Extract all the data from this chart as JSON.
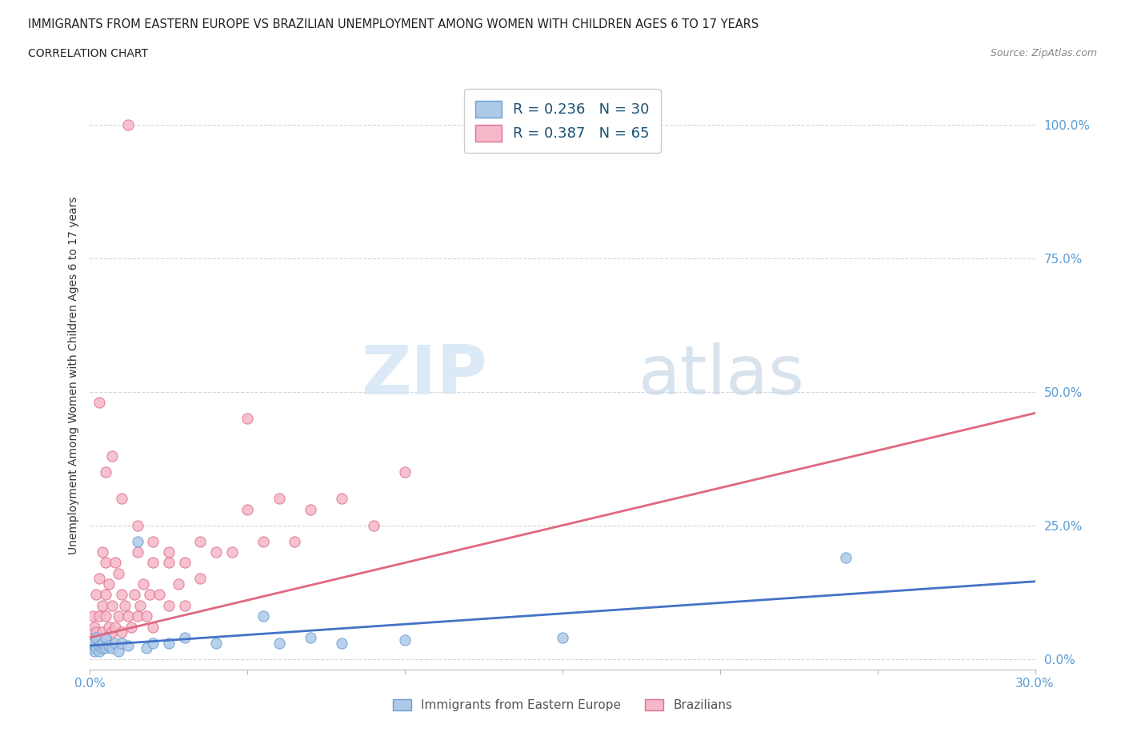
{
  "title": "IMMIGRANTS FROM EASTERN EUROPE VS BRAZILIAN UNEMPLOYMENT AMONG WOMEN WITH CHILDREN AGES 6 TO 17 YEARS",
  "subtitle": "CORRELATION CHART",
  "source": "Source: ZipAtlas.com",
  "ylabel": "Unemployment Among Women with Children Ages 6 to 17 years",
  "xlim": [
    0.0,
    0.3
  ],
  "ylim": [
    -0.02,
    1.08
  ],
  "yticks": [
    0.0,
    0.25,
    0.5,
    0.75,
    1.0
  ],
  "ytick_labels": [
    "0.0%",
    "25.0%",
    "50.0%",
    "75.0%",
    "100.0%"
  ],
  "xticks": [
    0.0,
    0.05,
    0.1,
    0.15,
    0.2,
    0.25,
    0.3
  ],
  "xtick_labels_show": [
    "0.0%",
    "",
    "",
    "",
    "",
    "",
    "30.0%"
  ],
  "watermark_zip": "ZIP",
  "watermark_atlas": "atlas",
  "series1_label": "Immigrants from Eastern Europe",
  "series1_R": "0.236",
  "series1_N": "30",
  "series1_color": "#adc9e8",
  "series1_edge_color": "#6da0d0",
  "series1_line_color": "#4472c4",
  "series2_label": "Brazilians",
  "series2_R": "0.387",
  "series2_N": "65",
  "series2_color": "#f5b8c8",
  "series2_edge_color": "#e07090",
  "series2_line_color": "#e06880",
  "background_color": "#ffffff",
  "grid_color": "#cccccc",
  "tick_color": "#5b9bd5",
  "series1_x": [
    0.0005,
    0.001,
    0.0015,
    0.002,
    0.002,
    0.003,
    0.003,
    0.004,
    0.004,
    0.005,
    0.005,
    0.006,
    0.007,
    0.008,
    0.009,
    0.01,
    0.012,
    0.015,
    0.018,
    0.02,
    0.025,
    0.03,
    0.04,
    0.055,
    0.06,
    0.07,
    0.08,
    0.1,
    0.15,
    0.24
  ],
  "series1_y": [
    0.02,
    0.03,
    0.015,
    0.02,
    0.04,
    0.015,
    0.025,
    0.02,
    0.03,
    0.02,
    0.04,
    0.025,
    0.02,
    0.03,
    0.015,
    0.03,
    0.025,
    0.22,
    0.02,
    0.03,
    0.03,
    0.04,
    0.03,
    0.08,
    0.03,
    0.04,
    0.03,
    0.035,
    0.04,
    0.19
  ],
  "series2_x": [
    0.0005,
    0.001,
    0.001,
    0.0015,
    0.002,
    0.002,
    0.003,
    0.003,
    0.003,
    0.004,
    0.004,
    0.004,
    0.005,
    0.005,
    0.005,
    0.005,
    0.006,
    0.006,
    0.007,
    0.007,
    0.008,
    0.008,
    0.009,
    0.009,
    0.01,
    0.01,
    0.011,
    0.012,
    0.013,
    0.014,
    0.015,
    0.015,
    0.016,
    0.017,
    0.018,
    0.019,
    0.02,
    0.02,
    0.022,
    0.025,
    0.025,
    0.028,
    0.03,
    0.03,
    0.035,
    0.035,
    0.04,
    0.045,
    0.05,
    0.055,
    0.06,
    0.065,
    0.07,
    0.08,
    0.09,
    0.1,
    0.003,
    0.005,
    0.007,
    0.01,
    0.015,
    0.02,
    0.025,
    0.05,
    0.012
  ],
  "series2_y": [
    0.02,
    0.04,
    0.08,
    0.06,
    0.05,
    0.12,
    0.04,
    0.08,
    0.15,
    0.05,
    0.1,
    0.2,
    0.04,
    0.08,
    0.12,
    0.18,
    0.06,
    0.14,
    0.05,
    0.1,
    0.06,
    0.18,
    0.08,
    0.16,
    0.05,
    0.12,
    0.1,
    0.08,
    0.06,
    0.12,
    0.08,
    0.2,
    0.1,
    0.14,
    0.08,
    0.12,
    0.06,
    0.18,
    0.12,
    0.1,
    0.18,
    0.14,
    0.1,
    0.18,
    0.15,
    0.22,
    0.2,
    0.2,
    0.28,
    0.22,
    0.3,
    0.22,
    0.28,
    0.3,
    0.25,
    0.35,
    0.48,
    0.35,
    0.38,
    0.3,
    0.25,
    0.22,
    0.2,
    0.45,
    1.0
  ],
  "trend1_x0": 0.0,
  "trend1_y0": 0.025,
  "trend1_x1": 0.3,
  "trend1_y1": 0.145,
  "trend2_x0": 0.0,
  "trend2_y0": 0.04,
  "trend2_x1": 0.3,
  "trend2_y1": 0.46
}
